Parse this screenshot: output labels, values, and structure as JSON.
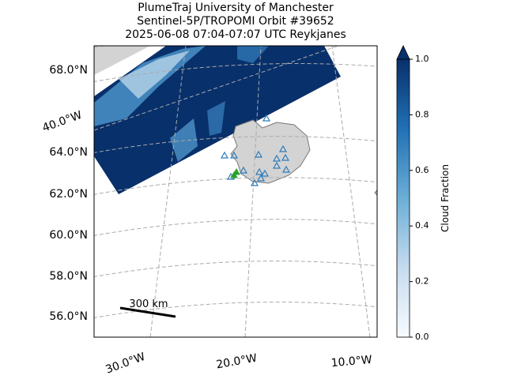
{
  "title_lines": [
    "PlumeTraj    University of Manchester",
    "Sentinel-5P/TROPOMI Orbit #39652",
    "2025-06-08   07:04-07:07 UTC   Reykjanes"
  ],
  "lat_labels": [
    "68.0°N",
    "64.0°N",
    "62.0°N",
    "60.0°N",
    "58.0°N",
    "56.0°N"
  ],
  "lon_labels": [
    "40.0°W",
    "30.0°W",
    "20.0°W",
    "10.0°W"
  ],
  "scale_bar": {
    "label": "300 km"
  },
  "colorbar": {
    "label": "Cloud Fraction",
    "lim": [
      0,
      1
    ],
    "ticks": [
      {
        "value": 0,
        "label": "0.0"
      },
      {
        "value": 0.2,
        "label": "0.2"
      },
      {
        "value": 0.4,
        "label": "0.4"
      },
      {
        "value": 0.6,
        "label": "0.6"
      },
      {
        "value": 0.8,
        "label": "0.8"
      },
      {
        "value": 1,
        "label": "1.0"
      }
    ]
  }
}
